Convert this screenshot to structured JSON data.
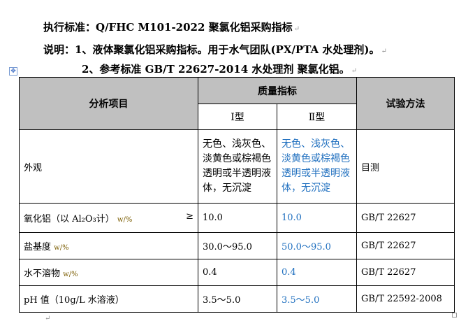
{
  "heading": {
    "line1": "执行标准：Q/FHC M101-2022 聚氯化铝采购指标",
    "line2": "说明：1、液体聚氯化铝采购指标。用于水气团队(PX/PTA 水处理剂)。",
    "line3": "2、参考标准 GB/T 22627-2014 水处理剂 聚氯化铝。"
  },
  "table": {
    "headers": {
      "item": "分析项目",
      "quality": "质量指标",
      "type1": "Ⅰ型",
      "type2": "Ⅱ型",
      "method": "试验方法"
    },
    "rows": [
      {
        "item": "外观",
        "unit": "",
        "type1": "无色、浅灰色、淡黄色或棕褐色透明或半透明液体，无沉淀",
        "type2": "无色、浅灰色、淡黄色或棕褐色透明或半透明液体，无沉淀",
        "method": "目测"
      },
      {
        "item": "氧化铝（以 Al₂O₃计）",
        "unit": "w/%",
        "prefix": "≥",
        "type1": "10.0",
        "type2": "10.0",
        "method": "GB/T 22627"
      },
      {
        "item": "盐基度",
        "unit": "w/%",
        "type1": "30.0～95.0",
        "type2": "50.0～95.0",
        "method": "GB/T 22627"
      },
      {
        "item": "水不溶物",
        "unit": "w/%",
        "type1": "0.4",
        "type2": "0.4",
        "method": "GB/T 22627"
      },
      {
        "item": "pH 值（10g/L 水溶液）",
        "unit": "",
        "type1": "3.5～5.0",
        "type2": "3.5～5.0",
        "method": "GB/T 22592-2008"
      }
    ]
  },
  "colors": {
    "type2_text": "#1f6fbf",
    "header_bg": "#c0c0c0"
  }
}
